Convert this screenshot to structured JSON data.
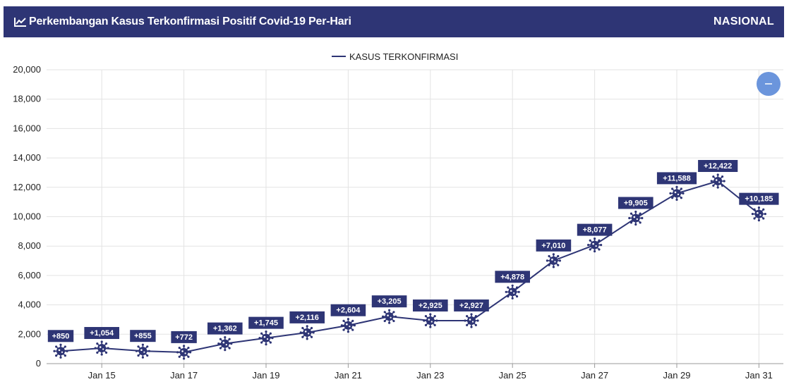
{
  "header": {
    "title": "Perkembangan Kasus Terkonfirmasi Positif Covid-19 Per-Hari",
    "scope": "NASIONAL",
    "icon": "line-chart-icon"
  },
  "colors": {
    "primary": "#2e3575",
    "zoom_button": "#6b95dc"
  },
  "zoom_button": {
    "icon": "minus-icon"
  },
  "chart_data": {
    "type": "line",
    "title": "",
    "xlabel": "",
    "ylabel": "",
    "ylim": [
      0,
      20000
    ],
    "yticks": [
      "0",
      "2,000",
      "4,000",
      "6,000",
      "8,000",
      "10,000",
      "12,000",
      "14,000",
      "16,000",
      "18,000",
      "20,000"
    ],
    "xticks": [
      "Jan 15",
      "Jan 17",
      "Jan 19",
      "Jan 21",
      "Jan 23",
      "Jan 25",
      "Jan 27",
      "Jan 29",
      "Jan 31"
    ],
    "legend": {
      "position": "top-center",
      "entries": [
        "KASUS TERKONFIRMASI"
      ]
    },
    "grid": true,
    "x": [
      "Jan 14",
      "Jan 15",
      "Jan 16",
      "Jan 17",
      "Jan 18",
      "Jan 19",
      "Jan 20",
      "Jan 21",
      "Jan 22",
      "Jan 23",
      "Jan 24",
      "Jan 25",
      "Jan 26",
      "Jan 27",
      "Jan 28",
      "Jan 29",
      "Jan 30",
      "Jan 31"
    ],
    "series": [
      {
        "name": "KASUS TERKONFIRMASI",
        "values": [
          850,
          1054,
          855,
          772,
          1362,
          1745,
          2116,
          2604,
          3205,
          2925,
          2927,
          4878,
          7010,
          8077,
          9905,
          11588,
          12422,
          10185
        ],
        "labels": [
          "+850",
          "+1,054",
          "+855",
          "+772",
          "+1,362",
          "+1,745",
          "+2,116",
          "+2,604",
          "+3,205",
          "+2,925",
          "+2,927",
          "+4,878",
          "+7,010",
          "+8,077",
          "+9,905",
          "+11,588",
          "+12,422",
          "+10,185"
        ]
      }
    ]
  }
}
